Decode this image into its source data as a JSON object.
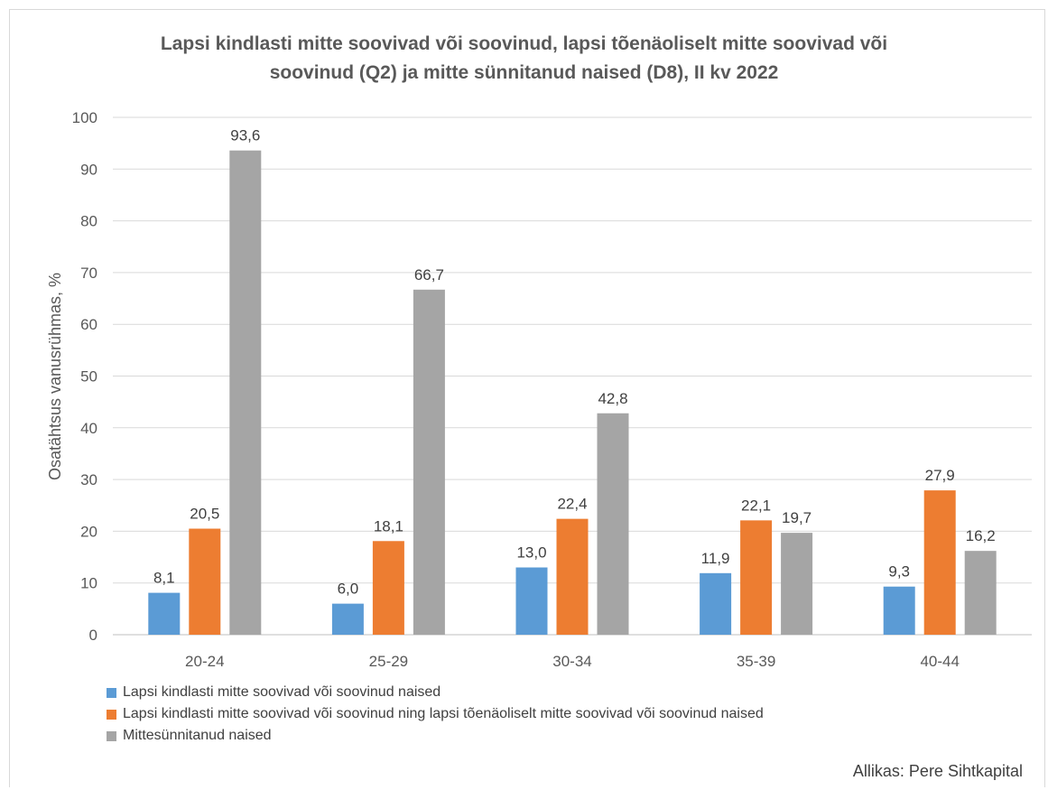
{
  "chart_data": {
    "type": "bar",
    "title_lines": [
      "Lapsi kindlasti mitte soovivad või soovinud, lapsi tõenäoliselt mitte soovivad või",
      "soovinud (Q2) ja mitte sünnitanud naised (D8), II kv 2022"
    ],
    "ylabel": "Osatähtsus vanusrühmas, %",
    "xlabel": "",
    "ylim": [
      0,
      100
    ],
    "yticks": [
      0,
      10,
      20,
      30,
      40,
      50,
      60,
      70,
      80,
      90,
      100
    ],
    "grid": true,
    "legend_position": "bottom-left",
    "categories": [
      "20-24",
      "25-29",
      "30-34",
      "35-39",
      "40-44"
    ],
    "series": [
      {
        "name": "Lapsi kindlasti mitte soovivad või soovinud naised",
        "color": "#5b9bd5",
        "values": [
          8.1,
          6.0,
          13.0,
          11.9,
          9.3
        ],
        "labels": [
          "8,1",
          "6,0",
          "13,0",
          "11,9",
          "9,3"
        ]
      },
      {
        "name": "Lapsi kindlasti mitte soovivad või soovinud ning lapsi tõenäoliselt mitte soovivad või soovinud naised",
        "color": "#ed7d31",
        "values": [
          20.5,
          18.1,
          22.4,
          22.1,
          27.9
        ],
        "labels": [
          "20,5",
          "18,1",
          "22,4",
          "22,1",
          "27,9"
        ]
      },
      {
        "name": "Mittesünnitanud naised",
        "color": "#a5a5a5",
        "values": [
          93.6,
          66.7,
          42.8,
          19.7,
          16.2
        ],
        "labels": [
          "93,6",
          "66,7",
          "42,8",
          "19,7",
          "16,2"
        ]
      }
    ],
    "source": "Allikas: Pere Sihtkapital"
  }
}
